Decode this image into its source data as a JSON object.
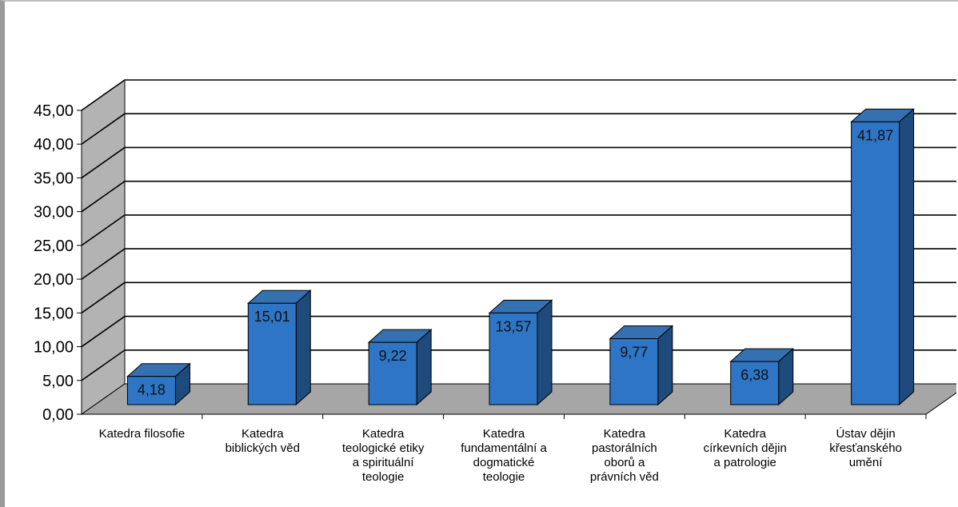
{
  "chart_data": {
    "type": "bar",
    "style": "3d-column",
    "categories": [
      [
        "Katedra filosofie"
      ],
      [
        "Katedra",
        "biblických věd"
      ],
      [
        "Katedra",
        "teologické etiky",
        "a spirituální",
        "teologie"
      ],
      [
        "Katedra",
        "fundamentální a",
        "dogmatické",
        "teologie"
      ],
      [
        "Katedra",
        "pastorálních",
        "oborů a",
        "právních věd"
      ],
      [
        "Katedra",
        "církevních dějin",
        "a patrologie"
      ],
      [
        "Ústav dějin",
        "křesťanského",
        "umění"
      ]
    ],
    "values": [
      4.18,
      15.01,
      9.22,
      13.57,
      9.77,
      6.38,
      41.87
    ],
    "value_labels": [
      "4,18",
      "15,01",
      "9,22",
      "13,57",
      "9,77",
      "6,38",
      "41,87"
    ],
    "yticks": [
      "0,00",
      "5,00",
      "10,00",
      "15,00",
      "20,00",
      "25,00",
      "30,00",
      "35,00",
      "40,00",
      "45,00"
    ],
    "ylim": [
      0,
      45
    ],
    "grid": true,
    "legend": "none",
    "colors": {
      "bar_front": "#2E75C6",
      "bar_top": "#3570B0",
      "bar_side": "#1F4A7C",
      "floor": "#A6A6A6",
      "wall": "#B3B3B3",
      "gridline": "#000000"
    }
  }
}
